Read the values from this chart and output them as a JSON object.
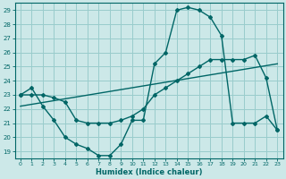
{
  "xlabel": "Humidex (Indice chaleur)",
  "bg_color": "#cce8e8",
  "grid_color": "#99cccc",
  "line_color": "#006666",
  "xlim": [
    -0.5,
    23.5
  ],
  "ylim": [
    18.5,
    29.5
  ],
  "yticks": [
    19,
    20,
    21,
    22,
    23,
    24,
    25,
    26,
    27,
    28,
    29
  ],
  "xticks": [
    0,
    1,
    2,
    3,
    4,
    5,
    6,
    7,
    8,
    9,
    10,
    11,
    12,
    13,
    14,
    15,
    16,
    17,
    18,
    19,
    20,
    21,
    22,
    23
  ],
  "series1_x": [
    0,
    1,
    2,
    3,
    4,
    5,
    6,
    7,
    8,
    9,
    10,
    11,
    12,
    13,
    14,
    15,
    16,
    17,
    18,
    19,
    20,
    21,
    22,
    23
  ],
  "series1_y": [
    23.0,
    23.5,
    22.2,
    21.2,
    20.0,
    19.5,
    19.2,
    18.7,
    18.7,
    19.5,
    21.2,
    21.2,
    25.2,
    26.0,
    29.0,
    29.2,
    29.0,
    28.5,
    27.2,
    21.0,
    21.0,
    21.0,
    21.5,
    20.5
  ],
  "series2_x": [
    0,
    1,
    2,
    3,
    4,
    5,
    6,
    7,
    8,
    9,
    10,
    11,
    12,
    13,
    14,
    15,
    16,
    17,
    18,
    19,
    20,
    21,
    22,
    23
  ],
  "series2_y": [
    23.0,
    23.0,
    23.0,
    22.8,
    22.5,
    21.2,
    21.0,
    21.0,
    21.0,
    21.2,
    21.5,
    22.0,
    23.0,
    23.5,
    24.0,
    24.5,
    25.0,
    25.5,
    25.5,
    25.5,
    25.5,
    25.8,
    24.2,
    20.5
  ],
  "series3_x": [
    0,
    23
  ],
  "series3_y": [
    22.2,
    25.2
  ]
}
